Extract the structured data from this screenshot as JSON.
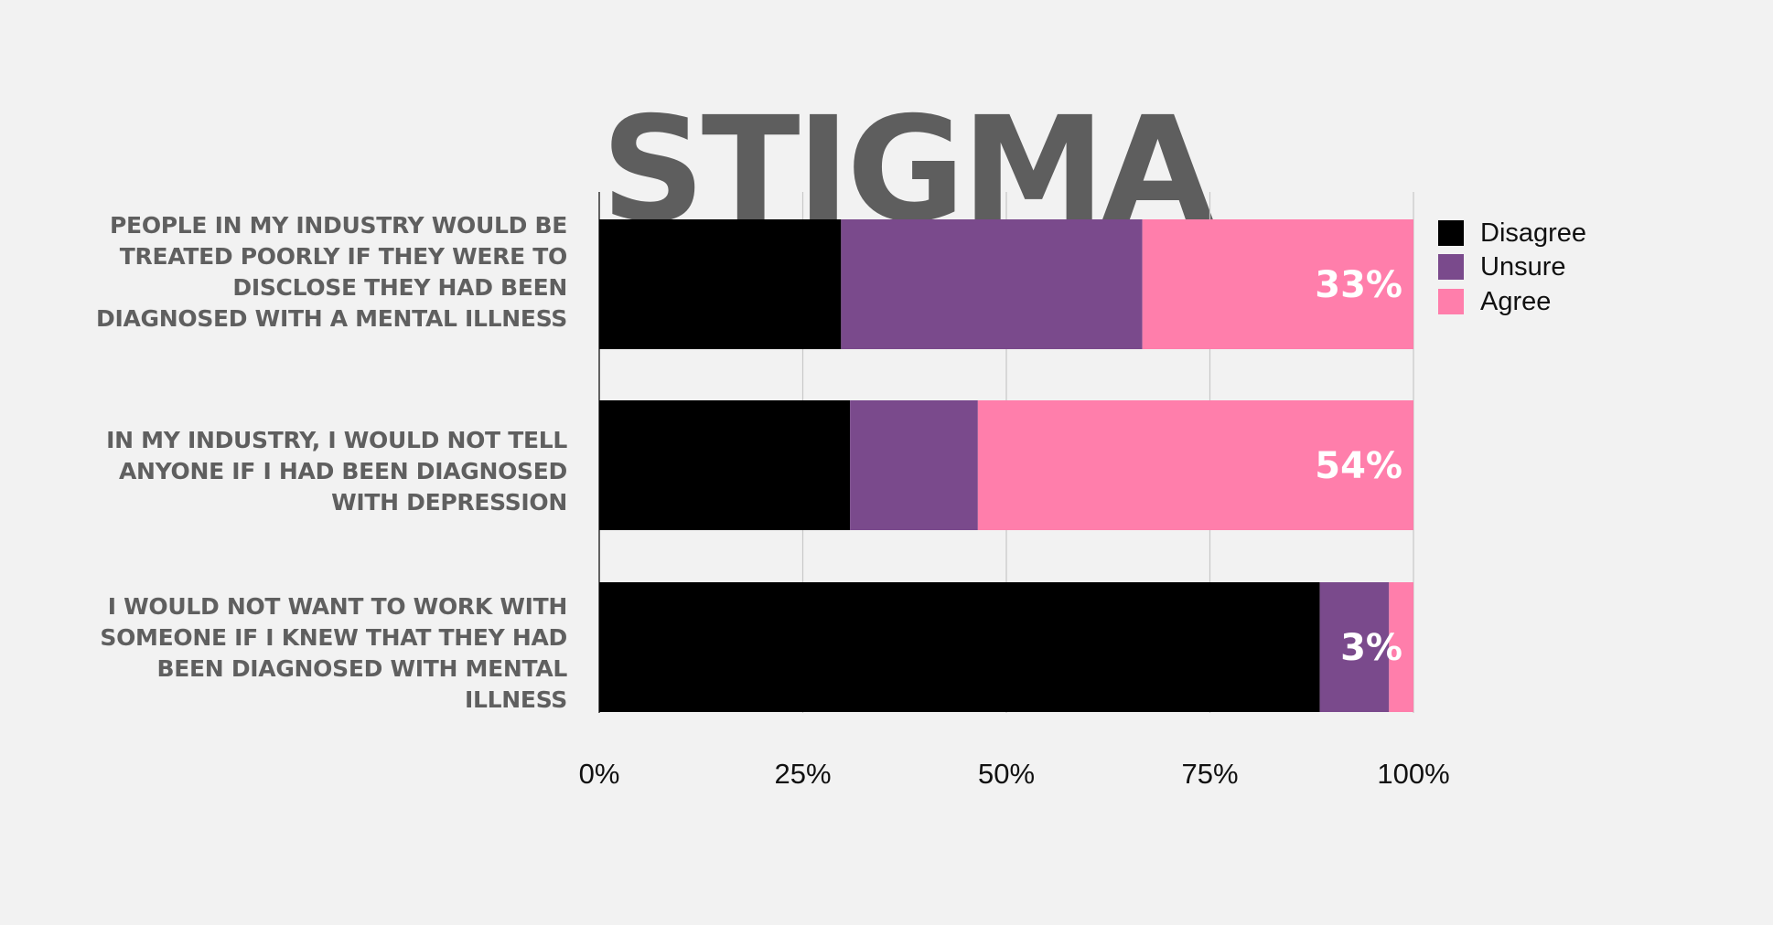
{
  "chart_data": {
    "type": "bar",
    "orientation": "horizontal",
    "stacked": true,
    "title": "STIGMA",
    "categories": [
      "PEOPLE IN MY INDUSTRY WOULD BE TREATED POORLY IF THEY WERE TO DISCLOSE THEY HAD BEEN DIAGNOSED WITH A MENTAL ILLNESS",
      "IN MY INDUSTRY, I WOULD NOT TELL ANYONE IF I HAD BEEN DIAGNOSED WITH DEPRESSION",
      "I WOULD NOT WANT TO WORK WITH SOMEONE IF I KNEW THAT THEY HAD BEEN DIAGNOSED WITH MENTAL ILLNESS"
    ],
    "series": [
      {
        "name": "Disagree",
        "color": "#000000",
        "values": [
          29.7,
          30.8,
          88.5
        ]
      },
      {
        "name": "Unsure",
        "color": "#7a4a8c",
        "values": [
          37.0,
          15.7,
          8.5
        ]
      },
      {
        "name": "Agree",
        "color": "#ff7eab",
        "values": [
          33.3,
          53.5,
          3.0
        ]
      }
    ],
    "data_labels": [
      "33%",
      "54%",
      "3%"
    ],
    "x_ticks": [
      "0%",
      "25%",
      "50%",
      "75%",
      "100%"
    ],
    "xlim": [
      0,
      100
    ],
    "grid": true,
    "legend_position": "top-right",
    "xlabel": "",
    "ylabel": ""
  }
}
